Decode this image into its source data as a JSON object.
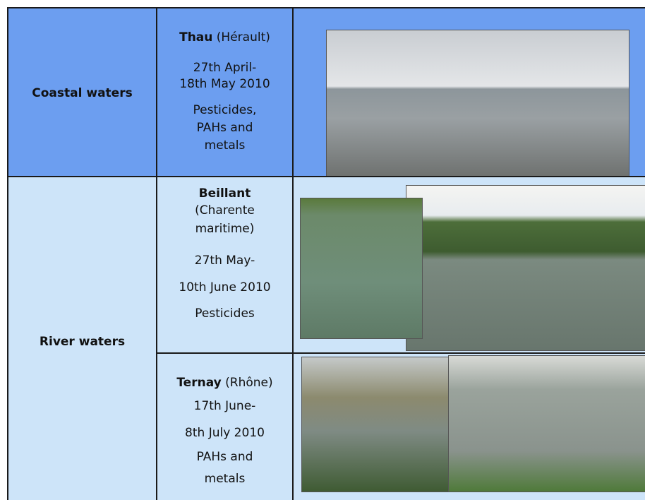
{
  "table": {
    "rows": [
      {
        "region": "Coastal waters",
        "sites": [
          {
            "name": "Thau",
            "area": "(Hérault)",
            "dates": [
              "27th April-",
              "18th May 2010"
            ],
            "contaminants": [
              "Pesticides,",
              "PAHs and",
              "metals"
            ]
          }
        ]
      },
      {
        "region": "River waters",
        "sites": [
          {
            "name": "Beillant",
            "area": [
              "(Charente",
              "maritime)"
            ],
            "dates": [
              "27th May-",
              "10th June 2010"
            ],
            "contaminants": [
              "Pesticides"
            ]
          },
          {
            "name": "Ternay",
            "area": "(Rhône)",
            "dates": [
              "17th June-",
              "8th July 2010"
            ],
            "contaminants": [
              "PAHs and",
              "metals"
            ]
          }
        ]
      }
    ]
  }
}
